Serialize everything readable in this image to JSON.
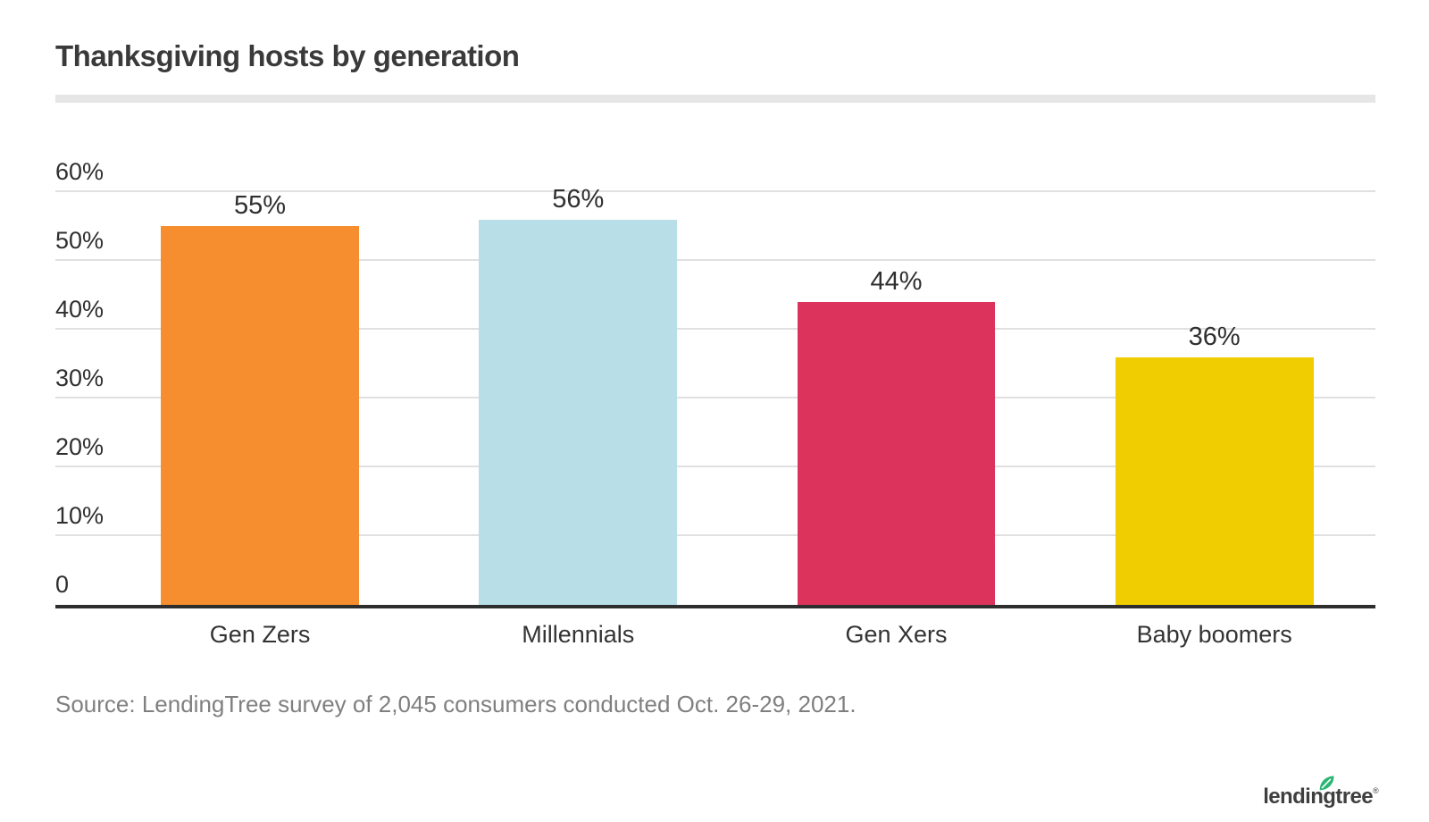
{
  "header": {
    "title": "Thanksgiving hosts by generation"
  },
  "chart_data": {
    "type": "bar",
    "title": "Thanksgiving hosts by generation",
    "categories": [
      "Gen Zers",
      "Millennials",
      "Gen Xers",
      "Baby boomers"
    ],
    "values": [
      55,
      56,
      44,
      36
    ],
    "value_labels": [
      "55%",
      "56%",
      "44%",
      "36%"
    ],
    "bar_colors": [
      "#F68D2E",
      "#B8DEE8",
      "#DB335C",
      "#F0CD00"
    ],
    "xlabel": "",
    "ylabel": "",
    "ylim": [
      0,
      60
    ],
    "ytick_interval": 10,
    "ytick_labels": [
      "0",
      "10%",
      "20%",
      "30%",
      "40%",
      "50%",
      "60%"
    ],
    "grid": true,
    "legend": false
  },
  "source": {
    "text": "Source: LendingTree survey of 2,045 consumers conducted Oct. 26-29, 2021."
  },
  "branding": {
    "logo_text": "lendingtree",
    "registered_mark": "®",
    "leaf_color": "#2BB673",
    "logo_text_color": "#3F3F3F"
  },
  "colors": {
    "title_text": "#3A3A3A",
    "axis_text": "#2F2F2F",
    "gridline": "#E0E0E0",
    "divider": "#E6E6E6",
    "axis_line": "#2E2E2E",
    "source_text": "#7F7F7F",
    "background": "#FFFFFF"
  }
}
